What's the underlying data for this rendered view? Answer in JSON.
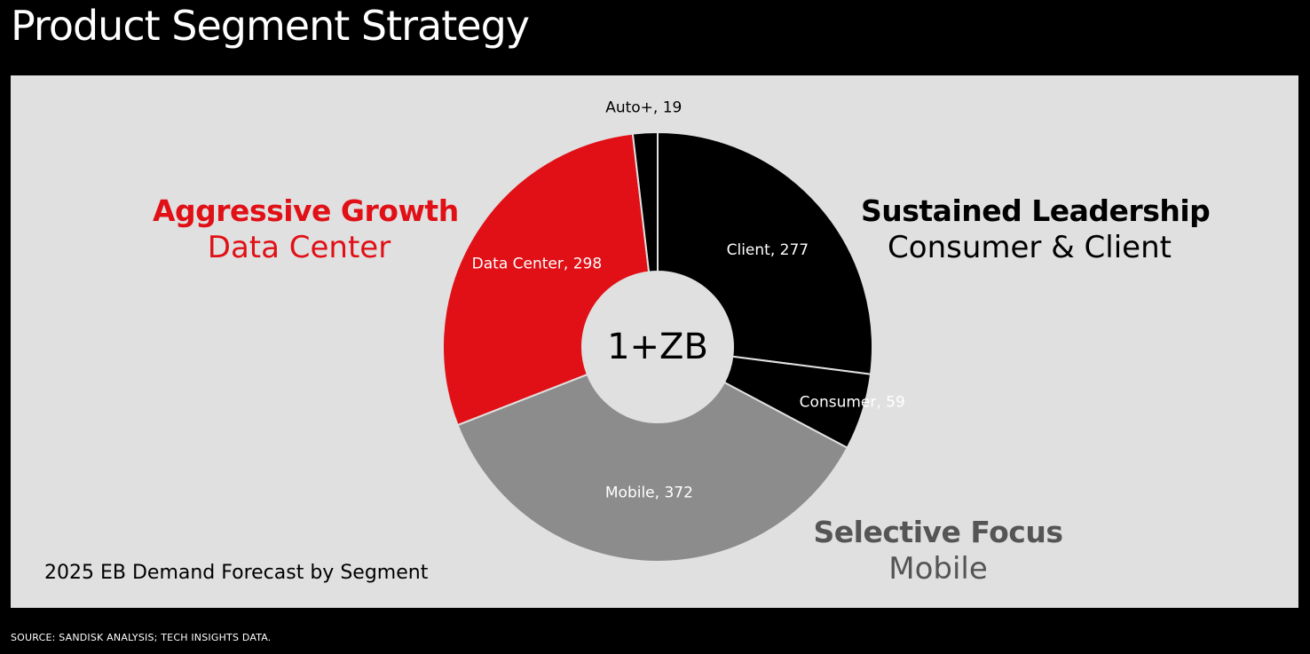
{
  "header": {
    "title": "Product Segment Strategy"
  },
  "colors": {
    "red": "#e01016",
    "black": "#000000",
    "gray": "#8c8c8c",
    "panel": "#e0e0e0",
    "gray_text": "#555555"
  },
  "groups": {
    "aggressive": {
      "title": "Aggressive Growth",
      "subtitle": "Data Center"
    },
    "sustained": {
      "title": "Sustained Leadership",
      "subtitle": "Consumer & Client"
    },
    "selective": {
      "title": "Selective Focus",
      "subtitle": "Mobile"
    }
  },
  "chart_data": {
    "type": "pie",
    "style": "donut",
    "title": "",
    "subtitle": "2025 EB Demand Forecast by Segment",
    "center_label": "1+ZB",
    "slices": [
      {
        "label": "Client, 277",
        "name": "Client",
        "value": 277,
        "color": "#000000"
      },
      {
        "label": "Consumer, 59",
        "name": "Consumer",
        "value": 59,
        "color": "#000000"
      },
      {
        "label": "Mobile, 372",
        "name": "Mobile",
        "value": 372,
        "color": "#8c8c8c"
      },
      {
        "label": "Data Center, 298",
        "name": "Data Center",
        "value": 298,
        "color": "#e01016"
      },
      {
        "label": "Auto+, 19",
        "name": "Auto+",
        "value": 19,
        "color": "#000000"
      }
    ]
  },
  "footer": {
    "source": "SOURCE: SANDISK ANALYSIS; TECH INSIGHTS DATA."
  }
}
